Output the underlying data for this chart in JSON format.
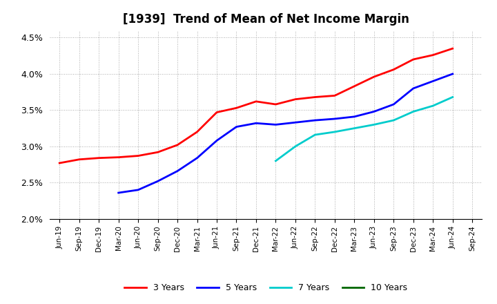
{
  "title": "[1939]  Trend of Mean of Net Income Margin",
  "ylim": [
    0.02,
    0.046
  ],
  "yticks": [
    0.02,
    0.025,
    0.03,
    0.035,
    0.04,
    0.045
  ],
  "background_color": "#ffffff",
  "plot_background": "#ffffff",
  "grid_color": "#aaaaaa",
  "legend_labels": [
    "3 Years",
    "5 Years",
    "7 Years",
    "10 Years"
  ],
  "legend_colors": [
    "#ff0000",
    "#0000ff",
    "#00cccc",
    "#006600"
  ],
  "x_labels": [
    "Jun-19",
    "Sep-19",
    "Dec-19",
    "Mar-20",
    "Jun-20",
    "Sep-20",
    "Dec-20",
    "Mar-21",
    "Jun-21",
    "Sep-21",
    "Dec-21",
    "Mar-22",
    "Jun-22",
    "Sep-22",
    "Dec-22",
    "Mar-23",
    "Jun-23",
    "Sep-23",
    "Dec-23",
    "Mar-24",
    "Jun-24",
    "Sep-24"
  ],
  "series_3y_x": [
    "Jun-19",
    "Sep-19",
    "Dec-19",
    "Mar-20",
    "Jun-20",
    "Sep-20",
    "Dec-20",
    "Mar-21",
    "Jun-21",
    "Sep-21",
    "Dec-21",
    "Mar-22",
    "Jun-22",
    "Sep-22",
    "Dec-22",
    "Mar-23",
    "Jun-23",
    "Sep-23",
    "Dec-23",
    "Mar-24",
    "Jun-24"
  ],
  "series_3y": [
    0.0277,
    0.0282,
    0.0284,
    0.0285,
    0.0287,
    0.0292,
    0.0302,
    0.032,
    0.0347,
    0.0353,
    0.0362,
    0.0358,
    0.0365,
    0.0368,
    0.037,
    0.0383,
    0.0396,
    0.0406,
    0.042,
    0.0426,
    0.0435
  ],
  "series_5y_x": [
    "Mar-20",
    "Jun-20",
    "Sep-20",
    "Dec-20",
    "Mar-21",
    "Jun-21",
    "Sep-21",
    "Dec-21",
    "Mar-22",
    "Jun-22",
    "Sep-22",
    "Dec-22",
    "Mar-23",
    "Jun-23",
    "Sep-23",
    "Dec-23",
    "Mar-24",
    "Jun-24"
  ],
  "series_5y": [
    0.0236,
    0.024,
    0.0252,
    0.0266,
    0.0284,
    0.0308,
    0.0327,
    0.0332,
    0.033,
    0.0333,
    0.0336,
    0.0338,
    0.0341,
    0.0348,
    0.0358,
    0.038,
    0.039,
    0.04
  ],
  "series_7y_x": [
    "Mar-22",
    "Jun-22",
    "Sep-22",
    "Dec-22",
    "Mar-23",
    "Jun-23",
    "Sep-23",
    "Dec-23",
    "Mar-24",
    "Jun-24"
  ],
  "series_7y": [
    0.028,
    0.03,
    0.0316,
    0.032,
    0.0325,
    0.033,
    0.0336,
    0.0348,
    0.0356,
    0.0368
  ],
  "series_10y_x": [],
  "series_10y": []
}
